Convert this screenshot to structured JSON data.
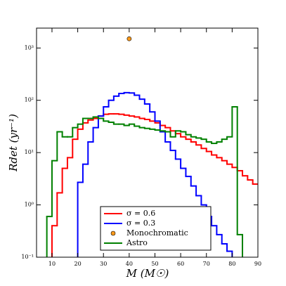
{
  "chart_data": {
    "type": "histogram",
    "xlabel": "M (M☉)",
    "ylabel": "Rdet (yr⁻¹)",
    "bins": [
      8,
      10,
      12,
      14,
      16,
      18,
      20,
      22,
      24,
      26,
      28,
      30,
      32,
      34,
      36,
      38,
      40,
      42,
      44,
      46,
      48,
      50,
      52,
      54,
      56,
      58,
      60,
      62,
      64,
      66,
      68,
      70,
      72,
      74,
      76,
      78,
      80,
      82,
      84,
      86,
      88,
      90
    ],
    "series": [
      {
        "name": "σ = 0.6",
        "color": "#ff0000",
        "values": [
          null,
          0.4,
          1.7,
          5,
          8,
          18,
          28,
          37,
          42,
          45,
          50,
          54,
          55,
          55,
          54,
          52,
          50,
          48,
          45,
          43,
          40,
          37,
          33,
          30,
          26,
          23,
          20,
          18,
          16,
          14,
          12,
          10.5,
          9,
          8,
          7,
          6,
          5.2,
          4.5,
          3.6,
          3,
          2.5
        ]
      },
      {
        "name": "σ = 0.3",
        "color": "#0000ff",
        "values": [
          null,
          null,
          null,
          null,
          null,
          null,
          2.7,
          6,
          16,
          30,
          50,
          75,
          100,
          120,
          135,
          140,
          138,
          125,
          105,
          85,
          60,
          40,
          25,
          16,
          11,
          7.5,
          5,
          3.5,
          2.3,
          1.5,
          1,
          0.6,
          0.4,
          0.27,
          0.18,
          0.13,
          null,
          null,
          null,
          null,
          null
        ]
      },
      {
        "name": "Astro",
        "color": "#008000",
        "values": [
          0.6,
          7,
          25,
          20,
          20,
          30,
          35,
          45,
          45,
          48,
          45,
          40,
          38,
          35,
          35,
          33,
          35,
          32,
          30,
          29,
          28,
          27,
          26,
          25,
          20,
          26,
          25,
          22,
          20,
          19,
          18,
          16,
          15,
          16,
          18,
          20,
          75,
          0.27,
          null,
          null,
          null
        ]
      }
    ],
    "points": [
      {
        "name": "Monochromatic",
        "color": "#ff9a1a",
        "x": [
          40
        ],
        "y": [
          1500
        ]
      }
    ],
    "legend_order": [
      "series.0",
      "series.1",
      "points.0",
      "series.2"
    ],
    "xlim": [
      4,
      90
    ],
    "xticks": [
      10,
      20,
      30,
      40,
      50,
      60,
      70,
      80,
      90
    ],
    "ylim": [
      0.1,
      2400
    ],
    "log_y": true,
    "yticks": [
      {
        "value": 0.1,
        "label": "10⁻¹"
      },
      {
        "value": 1,
        "label": "10⁰"
      },
      {
        "value": 10,
        "label": "10¹"
      },
      {
        "value": 100,
        "label": "10²"
      },
      {
        "value": 1000,
        "label": "10³"
      }
    ]
  }
}
